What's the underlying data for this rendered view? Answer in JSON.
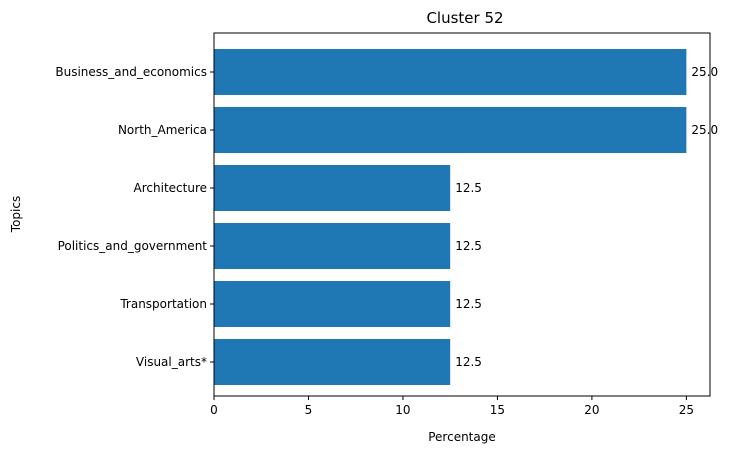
{
  "chart_data": {
    "type": "bar",
    "orientation": "horizontal",
    "title": "Cluster 52",
    "xlabel": "Percentage",
    "ylabel": "Topics",
    "categories": [
      "Business_and_economics",
      "North_America",
      "Architecture",
      "Politics_and_government",
      "Transportation",
      "Visual_arts*"
    ],
    "values": [
      25.0,
      25.0,
      12.5,
      12.5,
      12.5,
      12.5
    ],
    "value_labels": [
      "25.0",
      "25.0",
      "12.5",
      "12.5",
      "12.5",
      "12.5"
    ],
    "xlim": [
      0,
      26.25
    ],
    "xticks": [
      0,
      5,
      10,
      15,
      20,
      25
    ],
    "xtick_labels": [
      "0",
      "5",
      "10",
      "15",
      "20",
      "25"
    ],
    "grid": false,
    "legend": "none",
    "bar_color": "#1f77b4"
  }
}
